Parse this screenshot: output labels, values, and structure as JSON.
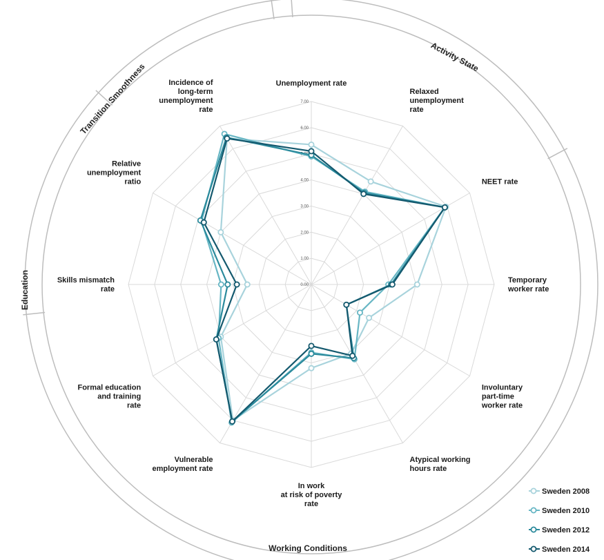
{
  "chart_data": {
    "type": "radar",
    "axes": [
      "Unemployment rate",
      "Relaxed unemployment rate",
      "NEET rate",
      "Temporary worker rate",
      "Involuntary part-time worker rate",
      "Atypical working hours rate",
      "In work at risk of poverty rate",
      "Vulnerable employment rate",
      "Formal education and training rate",
      "Skills mismatch rate",
      "Relative unemployment ratio",
      "Incidence of long-term unemployment rate"
    ],
    "axis_label_lines": [
      [
        "Unemployment rate"
      ],
      [
        "Relaxed",
        "unemployment",
        "rate"
      ],
      [
        "NEET rate"
      ],
      [
        "Temporary",
        "worker rate"
      ],
      [
        "Involuntary",
        "part-time",
        "worker rate"
      ],
      [
        "Atypical working",
        "hours rate"
      ],
      [
        "In work",
        "at risk of poverty",
        "rate"
      ],
      [
        "Vulnerable",
        "employment rate"
      ],
      [
        "Formal education",
        "and training",
        "rate"
      ],
      [
        "Skills mismatch",
        "rate"
      ],
      [
        "Relative",
        "unemployment",
        "ratio"
      ],
      [
        "Incidence of",
        "long-term",
        "unemployment",
        "rate"
      ]
    ],
    "r_range": [
      0,
      7
    ],
    "tick_labels": [
      "0.00",
      "1.00",
      "2.00",
      "3.00",
      "4.00",
      "5.00",
      "6.00",
      "7.00"
    ],
    "grid": true,
    "legend_position": "bottom-right",
    "series": [
      {
        "name": "Sweden 2008",
        "color": "#a8d3dc",
        "values": [
          5.35,
          4.55,
          5.95,
          4.05,
          2.55,
          3.05,
          3.2,
          6.0,
          4.0,
          2.45,
          4.0,
          6.45
        ]
      },
      {
        "name": "Sweden 2010",
        "color": "#67b6c4",
        "values": [
          4.9,
          4.1,
          5.9,
          2.95,
          2.15,
          3.3,
          2.6,
          6.1,
          4.1,
          3.45,
          4.85,
          6.65
        ]
      },
      {
        "name": "Sweden 2012",
        "color": "#2b8a9c",
        "values": [
          4.95,
          4.05,
          5.9,
          3.05,
          1.55,
          3.25,
          2.65,
          6.05,
          4.2,
          3.2,
          4.9,
          6.5
        ]
      },
      {
        "name": "Sweden 2014",
        "color": "#14596e",
        "values": [
          5.1,
          4.0,
          5.9,
          3.1,
          1.55,
          3.15,
          2.35,
          6.05,
          4.2,
          2.85,
          4.75,
          6.45
        ]
      }
    ],
    "groups": [
      {
        "label": "Activity State"
      },
      {
        "label": "Working Conditions"
      },
      {
        "label": "Education"
      },
      {
        "label": "Transition Smoothness"
      }
    ]
  }
}
